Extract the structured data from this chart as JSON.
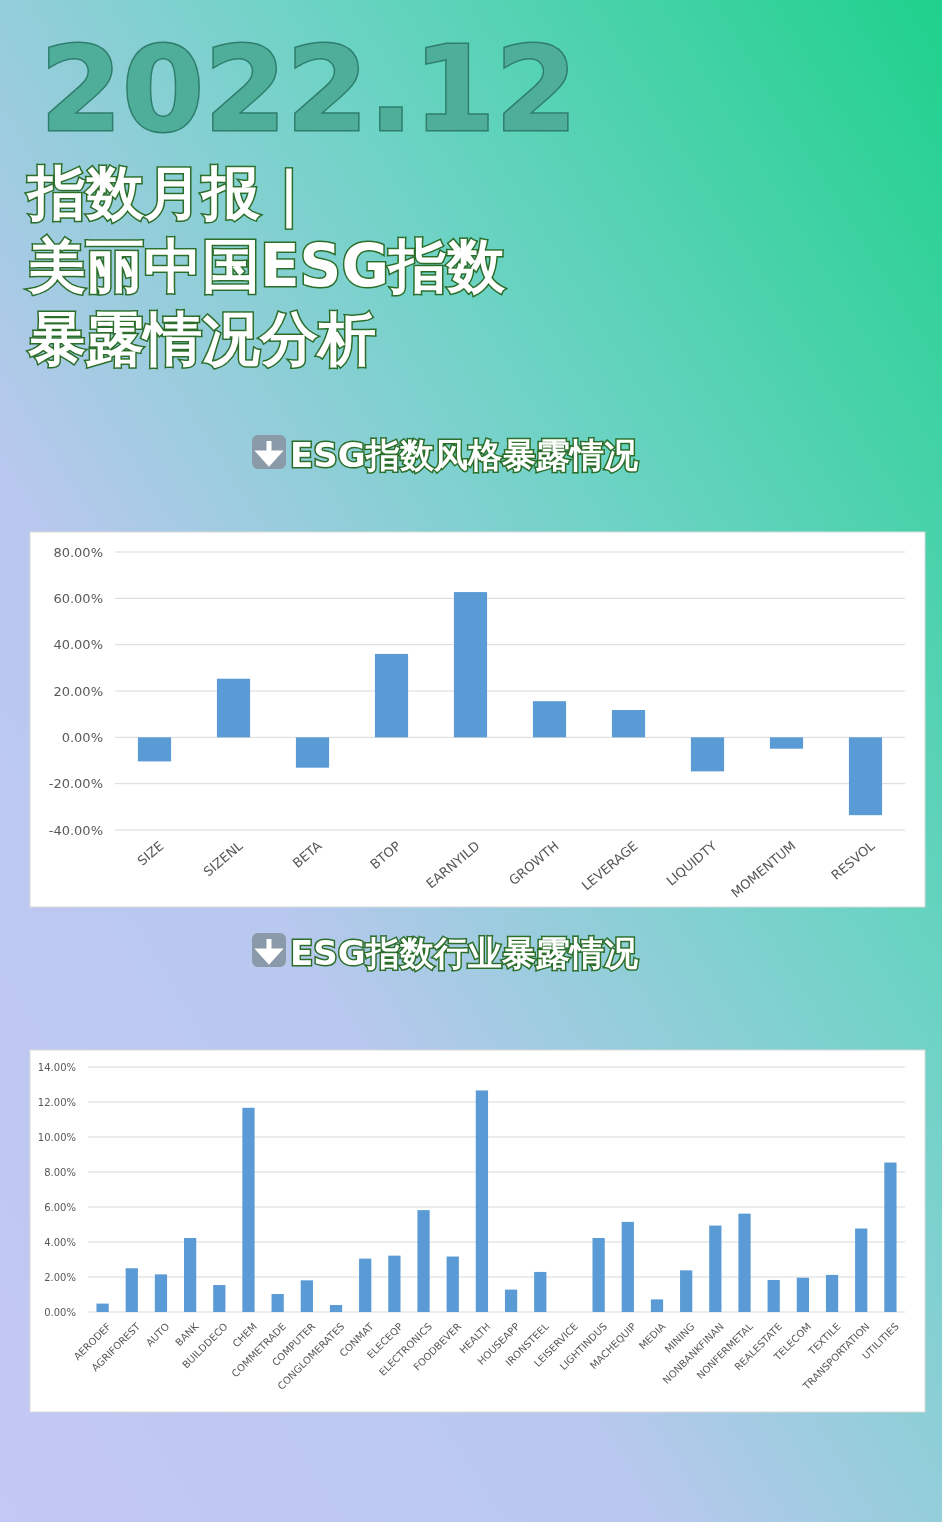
{
  "chart_data": [
    {
      "type": "bar",
      "title": "ESG指数风格暴露情况",
      "annotations": [
        "2022.12",
        "指数月报｜",
        "美丽中国ESG指数",
        "暴露情况分析"
      ],
      "categories": [
        "SIZE",
        "SIZENL",
        "BETA",
        "BTOP",
        "EARNYILD",
        "GROWTH",
        "LEVERAGE",
        "LIQUIDTY",
        "MOMENTUM",
        "RESVOL"
      ],
      "values": [
        -10.4,
        25.3,
        -13.1,
        36,
        62.7,
        15.6,
        11.8,
        -14.7,
        -4.9,
        -33.6
      ],
      "color": "#5b9bd5",
      "ylim": [
        -40,
        80
      ],
      "yticks": [
        {
          "value": -40,
          "label": "-40.00%"
        },
        {
          "value": -20,
          "label": "-20.00%"
        },
        {
          "value": 0,
          "label": "0.00%"
        },
        {
          "value": 20,
          "label": "20.00%"
        },
        {
          "value": 40,
          "label": "40.00%"
        },
        {
          "value": 60,
          "label": "60.00%"
        },
        {
          "value": 80,
          "label": "80.00%"
        }
      ],
      "grid": "y"
    },
    {
      "type": "bar",
      "title": "ESG指数行业暴露情况",
      "categories": [
        "AERODEF",
        "AGRIFOREST",
        "AUTO",
        "BANK",
        "BUILDDECO",
        "CHEM",
        "COMMETRADE",
        "COMPUTER",
        "CONGLOMERATES",
        "CONMAT",
        "ELECEQP",
        "ELECTRONICS",
        "FOODBEVER",
        "HEALTH",
        "HOUSEAPP",
        "IRONSTEEL",
        "LEISERVICE",
        "LIGHTINDUS",
        "MACHEQUIP",
        "MEDIA",
        "MINING",
        "NONBANKFINAN",
        "NONFERMETAL",
        "REALESTATE",
        "TELECOM",
        "TEXTILE",
        "TRANSPORTATION",
        "UTILITIES"
      ],
      "values": [
        0.48,
        2.5,
        2.15,
        4.23,
        1.54,
        11.67,
        1.03,
        1.81,
        0.4,
        3.05,
        3.22,
        5.82,
        3.17,
        12.66,
        1.28,
        2.29,
        null,
        4.23,
        5.15,
        0.72,
        2.38,
        4.94,
        5.62,
        1.83,
        1.96,
        2.12,
        4.77,
        8.54
      ],
      "color": "#5b9bd5",
      "ylim": [
        0,
        14
      ],
      "yticks": [
        {
          "value": 0,
          "label": "0.00%"
        },
        {
          "value": 2,
          "label": "2.00%"
        },
        {
          "value": 4,
          "label": "4.00%"
        },
        {
          "value": 6,
          "label": "6.00%"
        },
        {
          "value": 8,
          "label": "8.00%"
        },
        {
          "value": 10,
          "label": "10.00%"
        },
        {
          "value": 12,
          "label": "12.00%"
        },
        {
          "value": 14,
          "label": "14.00%"
        }
      ],
      "grid": "y"
    }
  ]
}
